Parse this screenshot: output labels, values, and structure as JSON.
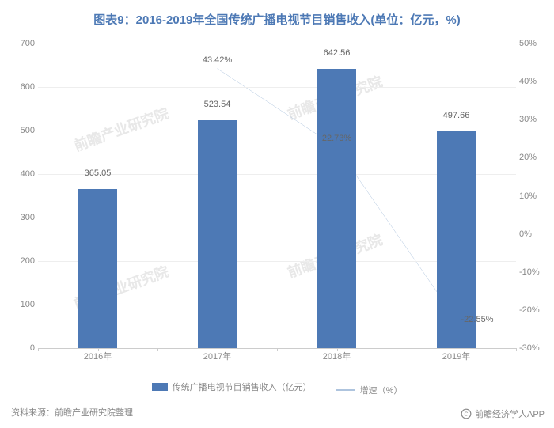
{
  "title": "图表9：2016-2019年全国传统广播电视节目销售收入(单位：亿元，%)",
  "chart": {
    "type": "bar+line",
    "categories": [
      "2016年",
      "2017年",
      "2018年",
      "2019年"
    ],
    "bar_series": {
      "name": "传统广播电视节目销售收入（亿元）",
      "values": [
        365.05,
        523.54,
        642.56,
        497.66
      ],
      "labels": [
        "365.05",
        "523.54",
        "642.56",
        "497.66"
      ],
      "color": "#4d79b5"
    },
    "line_series": {
      "name": "增速（%）",
      "values": [
        43.42,
        43.42,
        22.73,
        -22.55
      ],
      "labels": [
        "",
        "43.42%",
        "22.73%",
        "-22.55%"
      ],
      "start_index": 1,
      "color": "#aec4de"
    },
    "y_left": {
      "min": 0,
      "max": 700,
      "step": 100
    },
    "y_right": {
      "min": -30,
      "max": 50,
      "step": 10
    },
    "bar_width_ratio": 0.32,
    "background_color": "#ffffff",
    "grid_color": "#eeeeee",
    "axis_color": "#cccccc",
    "tick_font_size": 11,
    "tick_color": "#888888",
    "label_font_size": 11,
    "label_color": "#666666"
  },
  "legend": {
    "bar": "传统广播电视节目销售收入（亿元）",
    "line": "增速（%）"
  },
  "source": "资料来源：前瞻产业研究院整理",
  "app_badge": "前瞻经济学人APP",
  "watermark": "前瞻产业研究院"
}
